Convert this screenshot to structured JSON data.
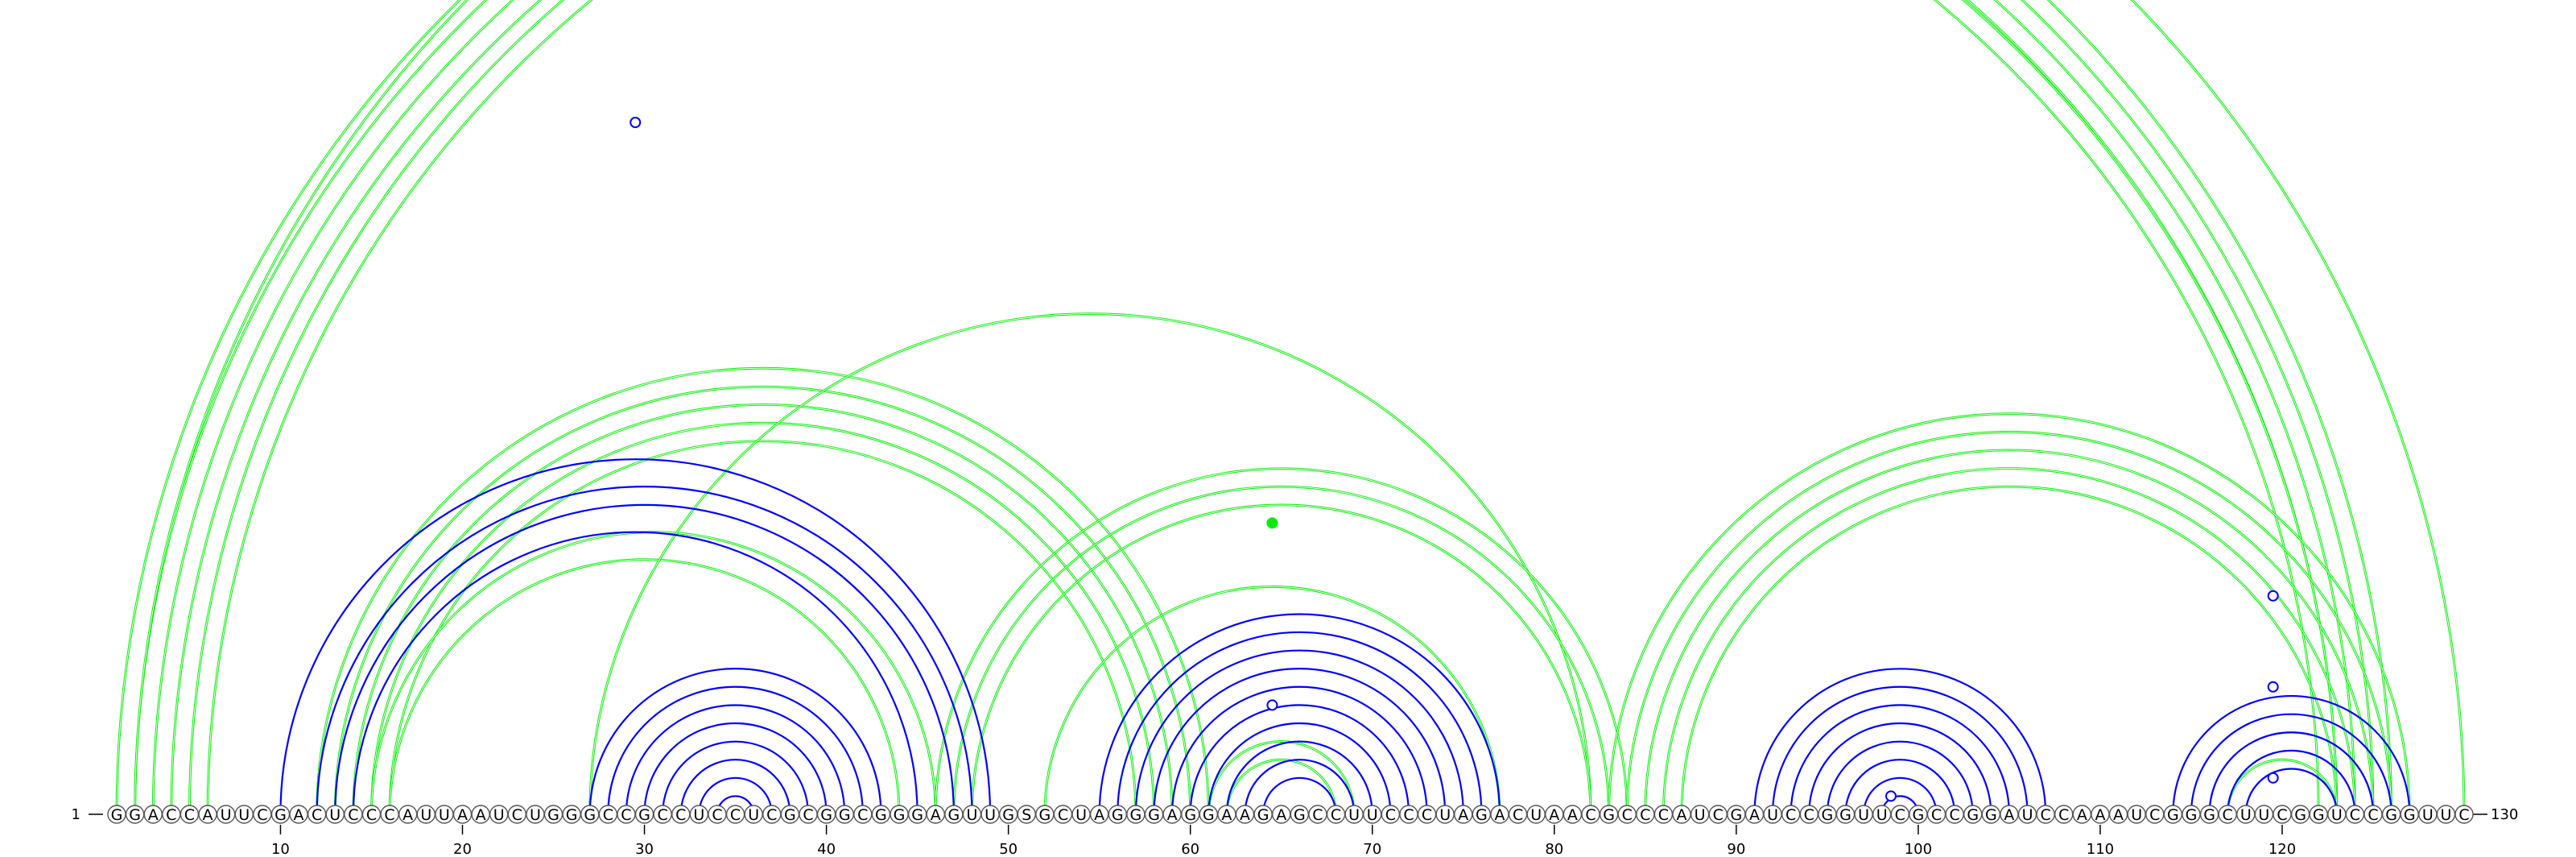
{
  "sequence": "GGACCAUUCGACUCCCAUUAAUCUGGGCCGCCUCCUCGCGGCGGGAGUUGSGCUAGGGAGGAAGAGCCUUCCCUAGACUAACGCCCAUCGAUCCGGUUCGCCGGAUCCAAAUCGGGCUUCGGUCCGGUUC",
  "start_label": "1",
  "end_label": "130",
  "ticks": [
    "10",
    "20",
    "30",
    "40",
    "50",
    "60",
    "70",
    "80",
    "90",
    "100",
    "110",
    "120"
  ],
  "colors": {
    "structure_pairs": "#0000ff",
    "alternative_pairs": "#00ee00",
    "nucleotide_outline": "#555555",
    "text": "#000000"
  },
  "chart_data": {
    "type": "arc-diagram",
    "length": 130,
    "blue_helices": [
      {
        "i": 10,
        "j": 49,
        "n": 1
      },
      {
        "i": 12,
        "j": 48,
        "n": 1
      },
      {
        "i": 13,
        "j": 47,
        "n": 1
      },
      {
        "i": 14,
        "j": 45,
        "n": 1
      },
      {
        "i": 27,
        "j": 43,
        "n": 8
      },
      {
        "i": 55,
        "j": 77,
        "n": 10
      },
      {
        "i": 91,
        "j": 107,
        "n": 8
      },
      {
        "i": 114,
        "j": 127,
        "n": 5
      }
    ],
    "green_helices": [
      {
        "i": 1,
        "j": 126,
        "n": 2
      },
      {
        "i": 3,
        "j": 124,
        "n": 2
      },
      {
        "i": 5,
        "j": 123,
        "n": 2
      },
      {
        "i": 2,
        "j": 130,
        "n": 1
      },
      {
        "i": 12,
        "j": 61,
        "n": 5
      },
      {
        "i": 15,
        "j": 46,
        "n": 1
      },
      {
        "i": 16,
        "j": 44,
        "n": 1
      },
      {
        "i": 27,
        "j": 82,
        "n": 1
      },
      {
        "i": 46,
        "j": 84,
        "n": 3
      },
      {
        "i": 52,
        "j": 77,
        "n": 1
      },
      {
        "i": 61,
        "j": 69,
        "n": 2
      },
      {
        "i": 83,
        "j": 127,
        "n": 5
      },
      {
        "i": 117,
        "j": 123,
        "n": 1
      }
    ],
    "markers": [
      {
        "position": 65.5,
        "height_index": 113,
        "color": "green",
        "filled": false
      },
      {
        "position": 29.5,
        "height_index": 38,
        "color": "blue",
        "filled": false
      },
      {
        "position": 64.5,
        "height_index": 16,
        "color": "green",
        "filled": true
      },
      {
        "position": 64.5,
        "height_index": 6,
        "color": "blue",
        "filled": false
      },
      {
        "position": 98.5,
        "height_index": 1,
        "color": "blue",
        "filled": false
      },
      {
        "position": 119.5,
        "height_index": 12,
        "color": "blue",
        "filled": false
      },
      {
        "position": 119.5,
        "height_index": 7,
        "color": "blue",
        "filled": false
      },
      {
        "position": 119.5,
        "height_index": 2,
        "color": "blue",
        "filled": false
      }
    ]
  }
}
